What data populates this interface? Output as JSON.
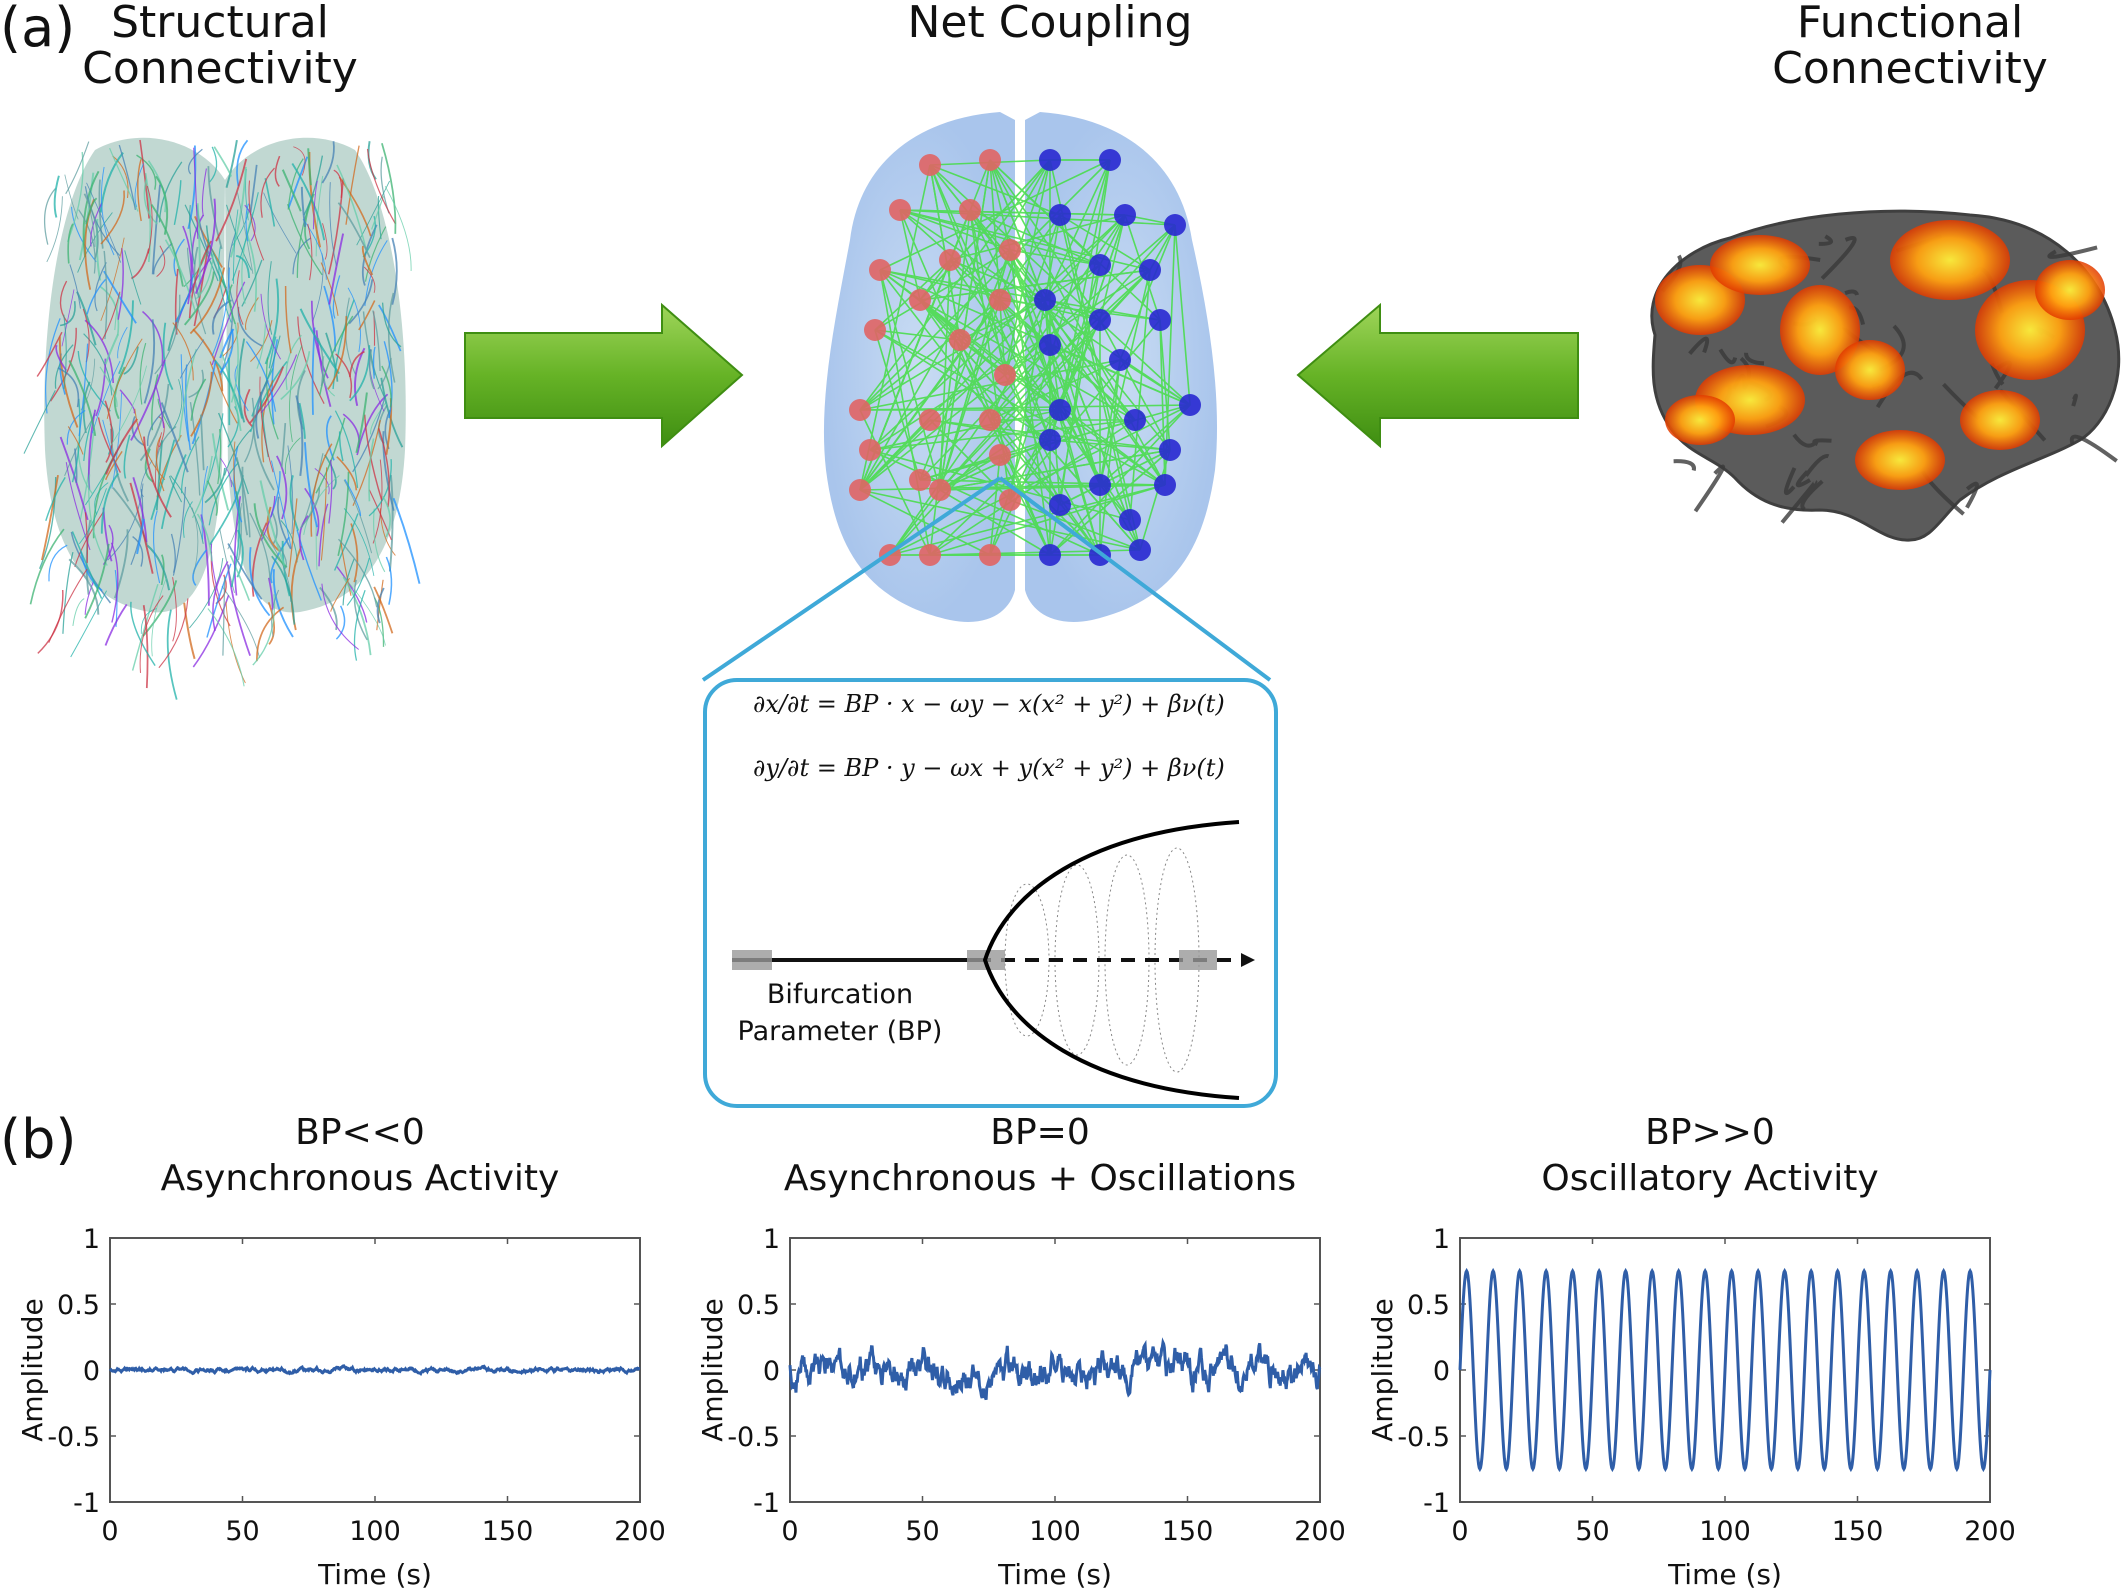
{
  "panel_a": {
    "letter": "(a)",
    "titles": {
      "structural": [
        "Structural",
        "Connectivity"
      ],
      "net": "Net Coupling",
      "functional": [
        "Functional",
        "Connectivity"
      ]
    },
    "inset": {
      "eq1": "∂x/∂t = BP · x − ωy − x(x² + y²) + βν(t)",
      "eq2": "∂y/∂t = BP · y − ωx + y(x² + y²) + βν(t)",
      "bp_label": [
        "Bifurcation",
        "Parameter (BP)"
      ]
    },
    "colors": {
      "arrow": "#6ab82a",
      "inset_border": "#3fa9d8",
      "node_left": "#e06464",
      "node_right": "#2828d0",
      "edges": "#44dd44"
    }
  },
  "panel_b": {
    "letter": "(b)",
    "ylabel": "Amplitude",
    "xlabel": "Time (s)",
    "yticks": [
      "1",
      "0.5",
      "0",
      "-0.5",
      "-1"
    ],
    "xticks": [
      "0",
      "50",
      "100",
      "150",
      "200"
    ]
  },
  "chart_data": [
    {
      "type": "line",
      "title": [
        "BP<<0",
        "Asynchronous Activity"
      ],
      "xlabel": "Time (s)",
      "ylabel": "Amplitude",
      "xlim": [
        0,
        200
      ],
      "ylim": [
        -1,
        1
      ],
      "series": [
        {
          "kind": "noise",
          "amplitude": 0.01
        }
      ]
    },
    {
      "type": "line",
      "title": [
        "BP=0",
        "Asynchronous + Oscillations"
      ],
      "xlabel": "Time (s)",
      "ylabel": "Amplitude",
      "xlim": [
        0,
        200
      ],
      "ylim": [
        -1,
        1
      ],
      "series": [
        {
          "kind": "noise",
          "amplitude": 0.08
        }
      ]
    },
    {
      "type": "line",
      "title": [
        "BP>>0",
        "Oscillatory Activity"
      ],
      "xlabel": "Time (s)",
      "ylabel": "Amplitude",
      "xlim": [
        0,
        200
      ],
      "ylim": [
        -1,
        1
      ],
      "series": [
        {
          "kind": "sine",
          "amplitude": 0.75,
          "cycles": 20
        }
      ]
    }
  ]
}
